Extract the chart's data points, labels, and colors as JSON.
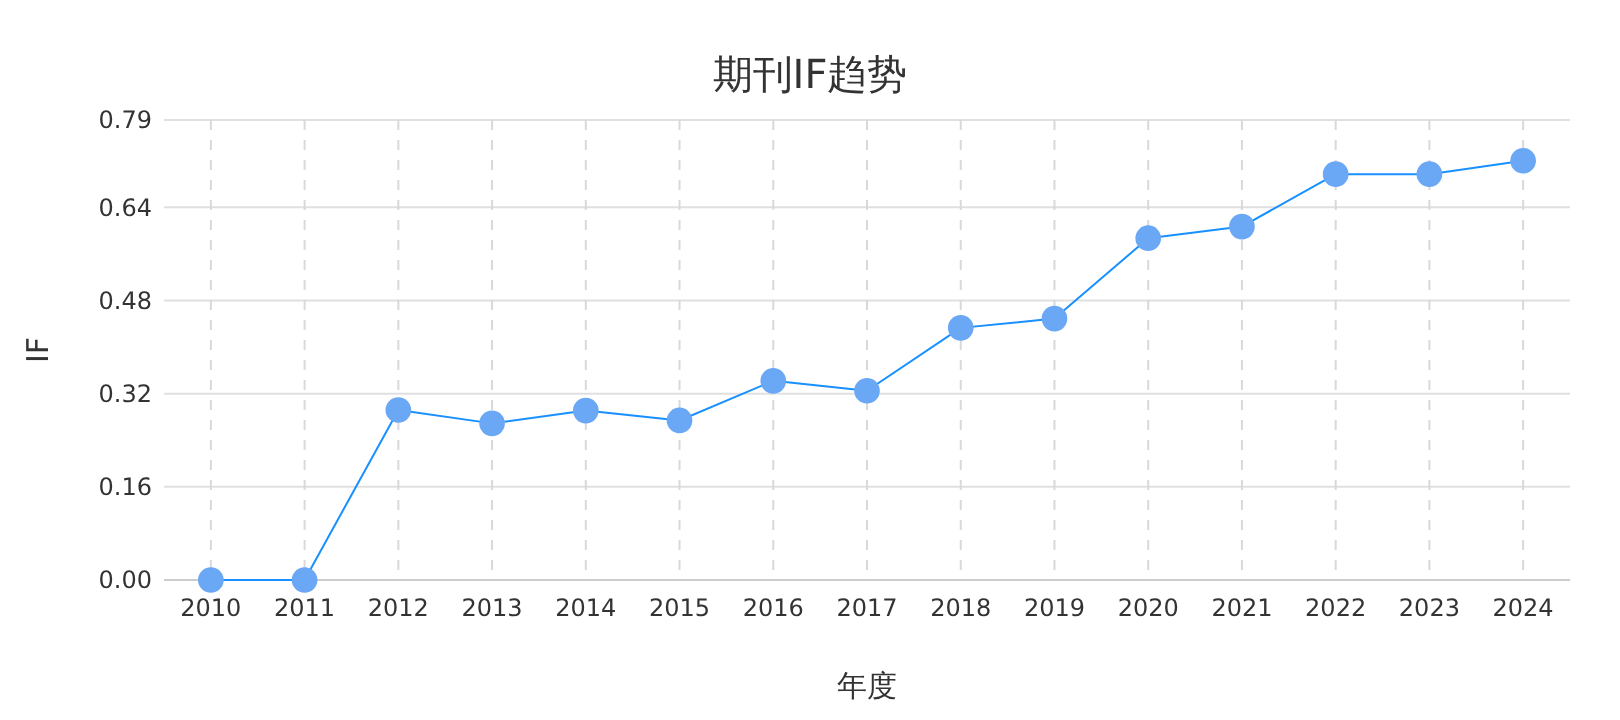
{
  "chart_data": {
    "type": "line",
    "title": "期刊IF趋势",
    "xlabel": "年度",
    "ylabel": "IF",
    "categories": [
      "2010",
      "2011",
      "2012",
      "2013",
      "2014",
      "2015",
      "2016",
      "2017",
      "2018",
      "2019",
      "2020",
      "2021",
      "2022",
      "2023",
      "2024"
    ],
    "series": [
      {
        "color": "#1890ff",
        "values": [
          0,
          0,
          0.292,
          0.269,
          0.291,
          0.274,
          0.342,
          0.325,
          0.433,
          0.449,
          0.587,
          0.607,
          0.697,
          0.697,
          0.72
        ]
      }
    ],
    "marker": "circle",
    "line_style": "solid",
    "grid": true,
    "ylim": [
      0,
      0.79
    ],
    "yticks": [
      {
        "value": 0,
        "label": "0.00"
      },
      {
        "value": 0.16,
        "label": "0.16"
      },
      {
        "value": 0.32,
        "label": "0.32"
      },
      {
        "value": 0.48,
        "label": "0.48"
      },
      {
        "value": 0.64,
        "label": "0.64"
      },
      {
        "value": 0.79,
        "label": "0.79"
      }
    ]
  }
}
